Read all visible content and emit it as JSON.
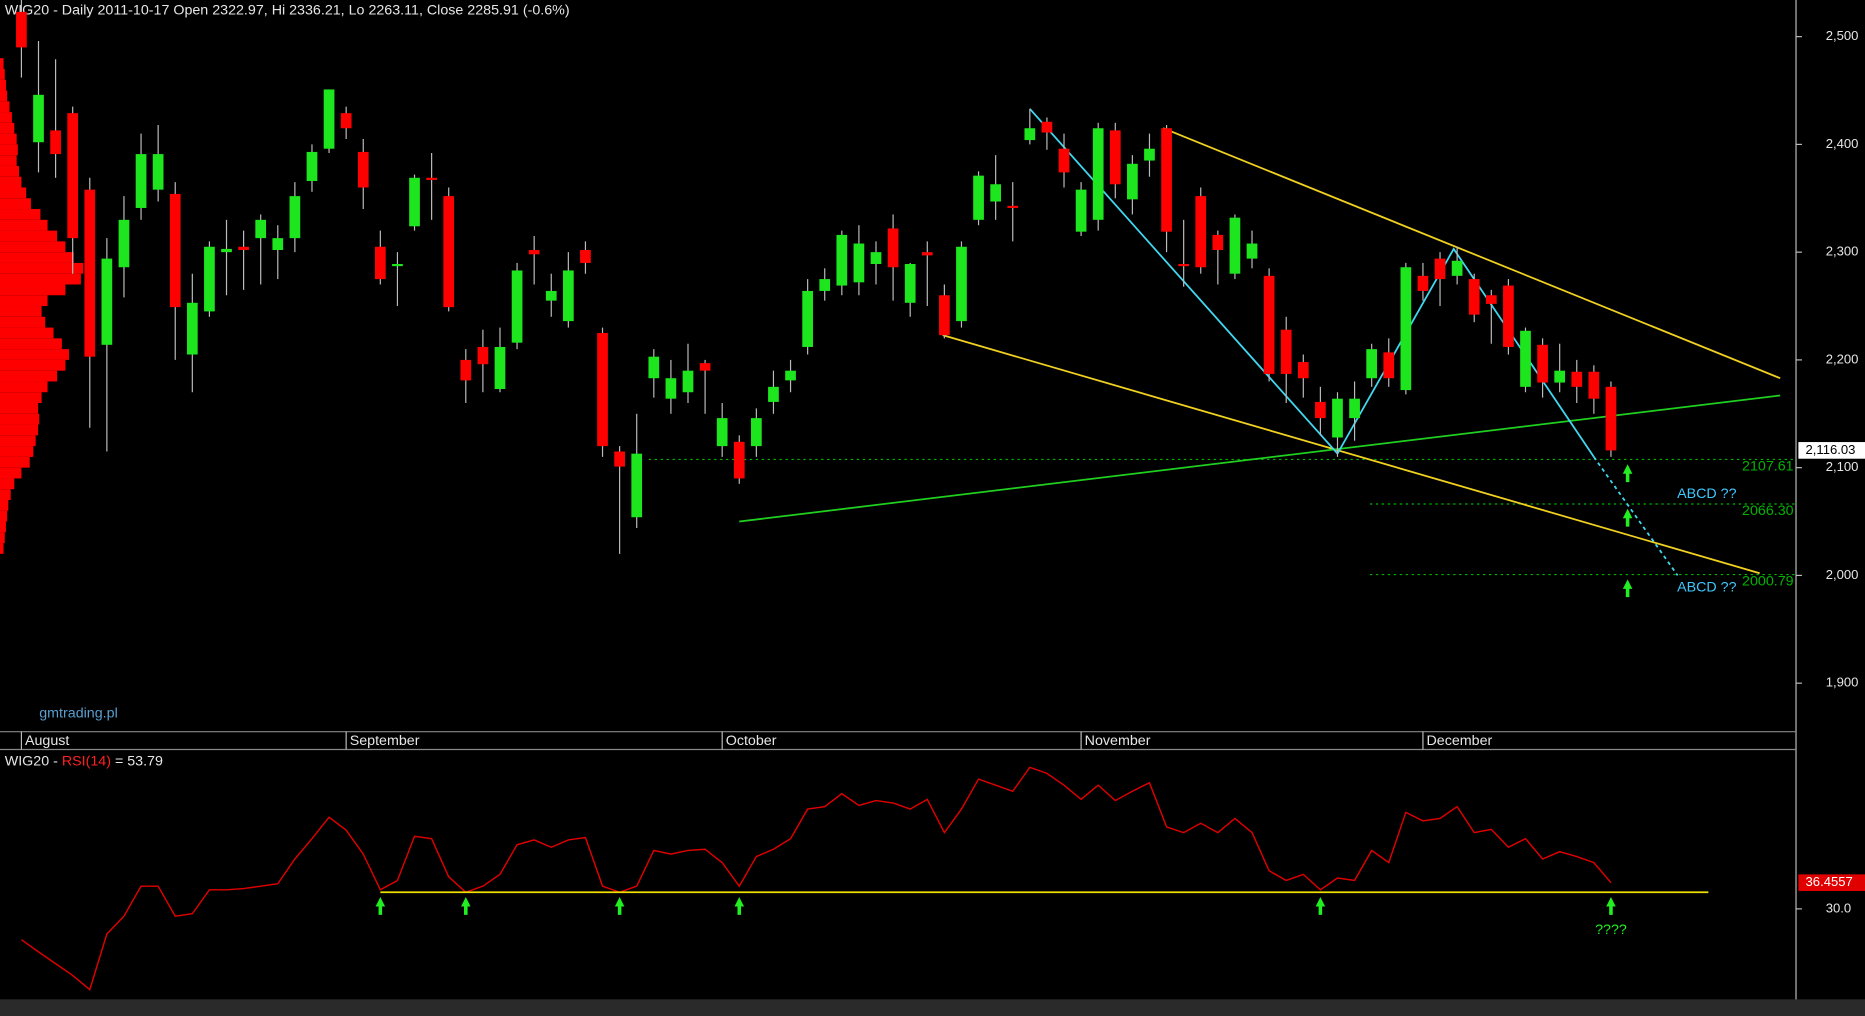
{
  "chart_data": [
    {
      "type": "candlestick",
      "title": "WIG20 - Daily 2011-10-17 Open 2322.97, Hi 2336.21, Lo 2263.11, Close 2285.91 (-0.6%)",
      "watermark": "gmtrading.pl",
      "categories": [
        "August",
        null,
        null,
        null,
        null,
        null,
        null,
        null,
        null,
        null,
        null,
        null,
        null,
        null,
        null,
        null,
        null,
        null,
        null,
        "September",
        null,
        null,
        null,
        null,
        null,
        null,
        null,
        null,
        null,
        null,
        null,
        null,
        null,
        null,
        null,
        null,
        null,
        null,
        null,
        null,
        null,
        "October",
        null,
        null,
        null,
        null,
        null,
        null,
        null,
        null,
        null,
        null,
        null,
        null,
        null,
        null,
        null,
        null,
        null,
        null,
        null,
        null,
        "November",
        null,
        null,
        null,
        null,
        null,
        null,
        null,
        null,
        null,
        null,
        null,
        null,
        null,
        null,
        null,
        null,
        null,
        null,
        null,
        "December",
        null,
        null,
        null,
        null,
        null,
        null,
        null,
        null,
        null,
        null,
        null
      ],
      "open": [
        2523,
        2402,
        2413,
        2429,
        2358,
        2214,
        2286,
        2341,
        2358,
        2354,
        2205,
        2245,
        2300,
        2305,
        2313,
        2302,
        2313,
        2366,
        2396,
        2429,
        2393,
        2305,
        2287,
        2324,
        2369,
        2352,
        2200,
        2212,
        2173,
        2216,
        2302,
        2255,
        2236,
        2302,
        2225,
        2115,
        2054,
        2183,
        2164,
        2170,
        2197,
        2120,
        2124,
        2120,
        2161,
        2181,
        2212,
        2264,
        2269,
        2272,
        2289,
        2322,
        2253,
        2300,
        2260,
        2236,
        2330,
        2347,
        2343,
        2404,
        2421,
        2396,
        2319,
        2330,
        2413,
        2349,
        2385,
        2415,
        2289,
        2352,
        2316,
        2280,
        2294,
        2278,
        2228,
        2198,
        2161,
        2128,
        2146,
        2183,
        2207,
        2172,
        2278,
        2294,
        2278,
        2275,
        2260,
        2269,
        2175,
        2214,
        2179,
        2189,
        2189,
        2175
      ],
      "high": [
        2534,
        2496,
        2479,
        2435,
        2369,
        2313,
        2352,
        2410,
        2418,
        2365,
        2280,
        2310,
        2330,
        2320,
        2335,
        2325,
        2365,
        2400,
        2451,
        2435,
        2405,
        2320,
        2300,
        2372,
        2392,
        2360,
        2210,
        2228,
        2230,
        2290,
        2315,
        2280,
        2300,
        2310,
        2230,
        2120,
        2150,
        2210,
        2200,
        2215,
        2200,
        2160,
        2130,
        2155,
        2190,
        2200,
        2275,
        2285,
        2320,
        2325,
        2310,
        2335,
        2290,
        2310,
        2270,
        2310,
        2375,
        2390,
        2365,
        2433,
        2425,
        2410,
        2365,
        2420,
        2420,
        2390,
        2410,
        2418,
        2330,
        2360,
        2320,
        2335,
        2320,
        2285,
        2240,
        2205,
        2175,
        2170,
        2180,
        2215,
        2220,
        2290,
        2290,
        2300,
        2305,
        2280,
        2265,
        2275,
        2230,
        2220,
        2215,
        2200,
        2195,
        2180
      ],
      "low": [
        2462,
        2374,
        2369,
        2280,
        2137,
        2115,
        2258,
        2330,
        2347,
        2200,
        2170,
        2240,
        2260,
        2265,
        2270,
        2275,
        2300,
        2356,
        2392,
        2405,
        2340,
        2270,
        2250,
        2320,
        2330,
        2245,
        2160,
        2170,
        2170,
        2210,
        2270,
        2240,
        2230,
        2280,
        2110,
        2020,
        2044,
        2165,
        2150,
        2160,
        2150,
        2110,
        2085,
        2110,
        2150,
        2170,
        2205,
        2255,
        2260,
        2260,
        2270,
        2255,
        2240,
        2250,
        2220,
        2230,
        2325,
        2330,
        2310,
        2400,
        2395,
        2360,
        2315,
        2320,
        2350,
        2335,
        2370,
        2300,
        2268,
        2280,
        2270,
        2275,
        2285,
        2180,
        2160,
        2165,
        2130,
        2110,
        2125,
        2175,
        2175,
        2168,
        2255,
        2250,
        2270,
        2235,
        2215,
        2205,
        2170,
        2165,
        2170,
        2160,
        2150,
        2110
      ],
      "close": [
        2490,
        2446,
        2391,
        2313,
        2203,
        2294,
        2330,
        2391,
        2391,
        2249,
        2253,
        2305,
        2303,
        2302,
        2330,
        2313,
        2352,
        2393,
        2451,
        2415,
        2360,
        2275,
        2289,
        2369,
        2367,
        2249,
        2181,
        2196,
        2212,
        2283,
        2298,
        2264,
        2283,
        2290,
        2120,
        2101,
        2113,
        2203,
        2183,
        2190,
        2190,
        2146,
        2090,
        2146,
        2175,
        2190,
        2264,
        2275,
        2316,
        2308,
        2300,
        2286,
        2289,
        2297,
        2223,
        2305,
        2371,
        2363,
        2341,
        2415,
        2411,
        2374,
        2358,
        2415,
        2363,
        2382,
        2396,
        2319,
        2287,
        2286,
        2302,
        2332,
        2308,
        2187,
        2187,
        2183,
        2146,
        2164,
        2164,
        2210,
        2183,
        2286,
        2264,
        2275,
        2292,
        2242,
        2252,
        2212,
        2227,
        2179,
        2190,
        2175,
        2164,
        2116.03
      ],
      "up_color": "#1ee61e",
      "down_color": "#ff0000",
      "ylim": [
        1855,
        2534
      ],
      "yticks": [
        {
          "value": 1900,
          "label": "1,900"
        },
        {
          "value": 2000,
          "label": "2,000"
        },
        {
          "value": 2100,
          "label": "2,100"
        },
        {
          "value": 2200,
          "label": "2,200"
        },
        {
          "value": 2300,
          "label": "2,300"
        },
        {
          "value": 2400,
          "label": "2,400"
        },
        {
          "value": 2500,
          "label": "2,500"
        }
      ],
      "last_price": {
        "value": 2116.03,
        "label": "2,116.03"
      },
      "levels": [
        {
          "value": 2107.61,
          "label": "2107.61",
          "start": 36.7
        },
        {
          "value": 2066.3,
          "label": "2066.30",
          "start": 78.9
        },
        {
          "value": 2000.79,
          "label": "2000.79",
          "start": 78.9
        }
      ],
      "level_color": "#00b400",
      "annotations": [
        "ABCD ??",
        "ABCD ??"
      ],
      "annotation_color": "#40c8ff",
      "drawings": [
        {
          "color": "#f0d020",
          "x": [
            66.8,
            102.9
          ],
          "y": [
            2415,
            2183
          ]
        },
        {
          "color": "#f0d020",
          "x": [
            53.9,
            101.7
          ],
          "y": [
            2223,
            2002
          ]
        },
        {
          "color": "#20d020",
          "x": [
            42.0,
            102.9
          ],
          "y": [
            2050,
            2167
          ]
        },
        {
          "color": "#40d8f0",
          "x": [
            59.0,
            77.0,
            83.8,
            92.0
          ],
          "y": [
            2433,
            2113,
            2303,
            2110
          ]
        },
        {
          "color": "#40d8f0",
          "dashed": true,
          "x": [
            92.0,
            96.9
          ],
          "y": [
            2110,
            2000
          ]
        }
      ],
      "volume_profile": {
        "color": "#ff0000",
        "bins": [
          2020,
          2030,
          2040,
          2050,
          2060,
          2070,
          2080,
          2090,
          2100,
          2110,
          2120,
          2130,
          2140,
          2150,
          2160,
          2170,
          2180,
          2190,
          2200,
          2210,
          2220,
          2230,
          2240,
          2250,
          2260,
          2270,
          2280,
          2290,
          2300,
          2310,
          2320,
          2330,
          2340,
          2350,
          2360,
          2370,
          2380,
          2390,
          2400,
          2410,
          2420,
          2430,
          2440,
          2450,
          2460,
          2470,
          2480
        ],
        "values": [
          3,
          4,
          5,
          6,
          7,
          9,
          12,
          18,
          25,
          28,
          30,
          32,
          33,
          32,
          35,
          40,
          48,
          55,
          58,
          52,
          45,
          38,
          35,
          40,
          55,
          68,
          70,
          62,
          55,
          48,
          40,
          34,
          26,
          22,
          18,
          16,
          14,
          15,
          14,
          12,
          10,
          8,
          6,
          5,
          4,
          3
        ]
      }
    },
    {
      "type": "line",
      "title": "WIG20 -",
      "indicator": "RSI(14)",
      "reading": "= 53.79",
      "color": "#e00000",
      "values": [
        22.4,
        19.4,
        16.5,
        13.6,
        10.1,
        23.8,
        28.2,
        35.6,
        35.6,
        28.2,
        28.8,
        34.7,
        34.7,
        35.0,
        35.6,
        36.2,
        42.3,
        47.3,
        52.6,
        49.4,
        43.5,
        34.7,
        37.0,
        47.9,
        47.3,
        37.9,
        34.1,
        35.6,
        38.5,
        45.8,
        47.0,
        45.2,
        47.0,
        47.6,
        35.6,
        34.1,
        35.6,
        44.4,
        43.5,
        44.4,
        44.7,
        41.4,
        35.6,
        42.9,
        44.7,
        47.3,
        54.6,
        55.2,
        58.4,
        55.5,
        56.7,
        56.1,
        54.6,
        57.0,
        48.8,
        54.6,
        62.0,
        60.5,
        59.0,
        64.9,
        63.4,
        60.5,
        57.0,
        60.5,
        56.7,
        59.0,
        61.1,
        50.2,
        48.8,
        51.1,
        48.8,
        52.3,
        48.8,
        39.4,
        37.0,
        38.5,
        34.7,
        37.6,
        37.0,
        44.4,
        41.4,
        53.8,
        51.7,
        52.3,
        55.2,
        48.8,
        49.6,
        45.2,
        47.3,
        42.3,
        44.1,
        42.9,
        41.4,
        36.4557
      ],
      "ylim": [
        7.7,
        68.7
      ],
      "yticks": [
        {
          "value": 30,
          "label": "30.0"
        }
      ],
      "support": {
        "value": 34.1,
        "x": [
          21,
          98.7
        ],
        "color": "#f0e000"
      },
      "signal_points": [
        21,
        26,
        35,
        42,
        76,
        93
      ],
      "annotation": "????"
    }
  ]
}
